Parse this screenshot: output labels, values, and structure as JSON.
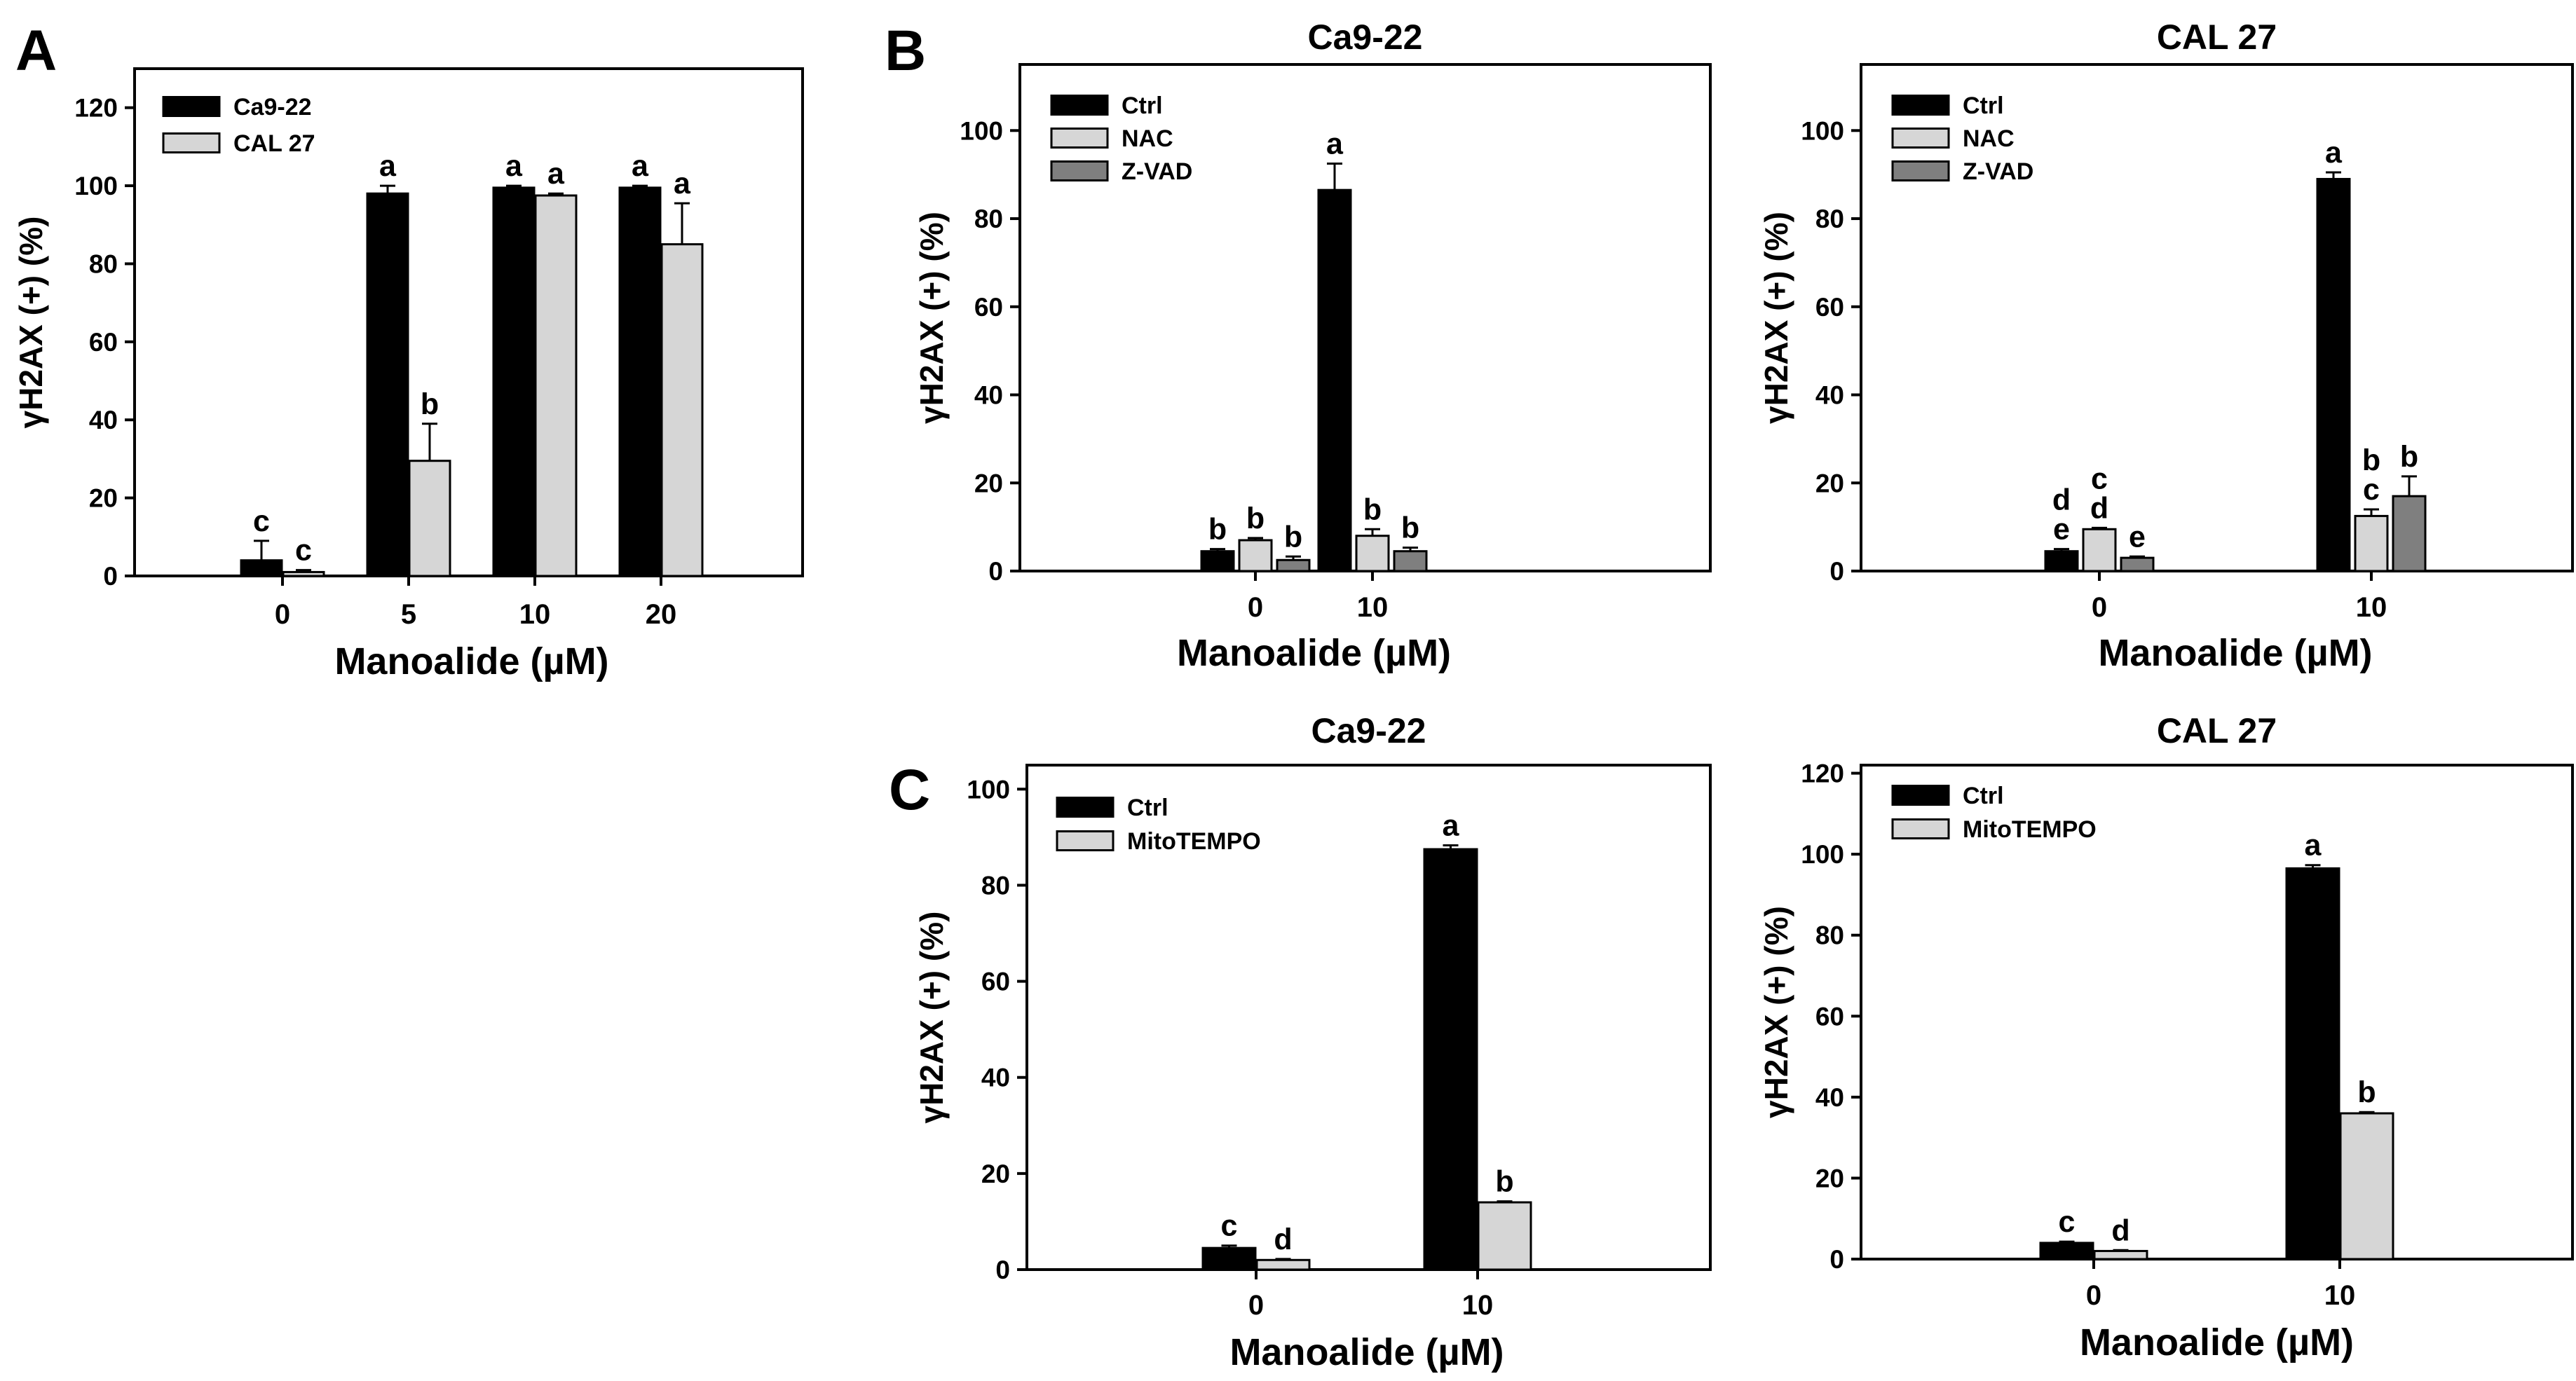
{
  "panel_letters": {
    "a": "A",
    "b": "B",
    "c": "C"
  },
  "colors": {
    "series_1": "#000000",
    "series_2": "#d6d6d6",
    "series_3": "#7f7f7f",
    "axes": "#000000"
  },
  "chart_data": [
    {
      "panel": "A",
      "type": "bar",
      "title": "",
      "xlabel": "Manoalide (µM)",
      "ylabel": "γH2AX (+) (%)",
      "ylim": [
        0,
        130
      ],
      "yticks": [
        0,
        20,
        40,
        60,
        80,
        100,
        120
      ],
      "categories": [
        "0",
        "5",
        "10",
        "20"
      ],
      "legend_position": "top-left",
      "series": [
        {
          "name": "Ca9-22",
          "color": "#000000",
          "values": [
            4,
            98,
            99.5,
            99.5
          ],
          "errors": [
            5,
            2,
            0.5,
            0.5
          ],
          "letters": [
            "c",
            "a",
            "a",
            "a"
          ]
        },
        {
          "name": "CAL 27",
          "color": "#d6d6d6",
          "values": [
            1,
            29.5,
            97.5,
            85
          ],
          "errors": [
            0.5,
            9.5,
            0.5,
            10.5
          ],
          "letters": [
            "c",
            "b",
            "a",
            "a"
          ]
        }
      ]
    },
    {
      "panel": "B",
      "type": "bar",
      "title": "Ca9-22",
      "xlabel": "Manoalide (µM)",
      "ylabel": "γH2AX (+) (%)",
      "ylim": [
        0,
        115
      ],
      "yticks": [
        0,
        20,
        40,
        60,
        80,
        100
      ],
      "categories": [
        "0",
        "10"
      ],
      "legend_position": "top-left",
      "series": [
        {
          "name": "Ctrl",
          "color": "#000000",
          "values": [
            4.5,
            86.5
          ],
          "errors": [
            0.5,
            6
          ],
          "letters": [
            "b",
            "a"
          ]
        },
        {
          "name": "NAC",
          "color": "#d6d6d6",
          "values": [
            7,
            8
          ],
          "errors": [
            0.5,
            1.5
          ],
          "letters": [
            "b",
            "b"
          ]
        },
        {
          "name": "Z-VAD",
          "color": "#7f7f7f",
          "values": [
            2.5,
            4.5
          ],
          "errors": [
            0.8,
            0.8
          ],
          "letters": [
            "b",
            "b"
          ]
        }
      ]
    },
    {
      "panel": "B",
      "type": "bar",
      "title": "CAL 27",
      "xlabel": "Manoalide (µM)",
      "ylabel": "γH2AX (+) (%)",
      "ylim": [
        0,
        115
      ],
      "yticks": [
        0,
        20,
        40,
        60,
        80,
        100
      ],
      "categories": [
        "0",
        "10"
      ],
      "legend_position": "top-left",
      "series": [
        {
          "name": "Ctrl",
          "color": "#000000",
          "values": [
            4.5,
            89
          ],
          "errors": [
            0.5,
            1.5
          ],
          "letters": [
            "d\ne",
            "a"
          ]
        },
        {
          "name": "NAC",
          "color": "#d6d6d6",
          "values": [
            9.5,
            12.5
          ],
          "errors": [
            0.3,
            1.5
          ],
          "letters": [
            "c\nd",
            "b\nc"
          ]
        },
        {
          "name": "Z-VAD",
          "color": "#7f7f7f",
          "values": [
            3,
            17
          ],
          "errors": [
            0.3,
            4.5
          ],
          "letters": [
            "e",
            "b"
          ]
        }
      ]
    },
    {
      "panel": "C",
      "type": "bar",
      "title": "Ca9-22",
      "xlabel": "Manoalide (µM)",
      "ylabel": "γH2AX (+) (%)",
      "ylim": [
        0,
        105
      ],
      "yticks": [
        0,
        20,
        40,
        60,
        80,
        100
      ],
      "categories": [
        "0",
        "10"
      ],
      "legend_position": "top-left",
      "series": [
        {
          "name": "Ctrl",
          "color": "#000000",
          "values": [
            4.5,
            87.5
          ],
          "errors": [
            0.5,
            0.8
          ],
          "letters": [
            "c",
            "a"
          ]
        },
        {
          "name": "MitoTEMPO",
          "color": "#d6d6d6",
          "values": [
            2,
            14
          ],
          "errors": [
            0.2,
            0.2
          ],
          "letters": [
            "d",
            "b"
          ]
        }
      ]
    },
    {
      "panel": "C",
      "type": "bar",
      "title": "CAL 27",
      "xlabel": "Manoalide (µM)",
      "ylabel": "γH2AX (+) (%)",
      "ylim": [
        0,
        122
      ],
      "yticks": [
        0,
        20,
        40,
        60,
        80,
        100,
        120
      ],
      "categories": [
        "0",
        "10"
      ],
      "legend_position": "top-left",
      "series": [
        {
          "name": "Ctrl",
          "color": "#000000",
          "values": [
            4,
            96.5
          ],
          "errors": [
            0.3,
            0.8
          ],
          "letters": [
            "c",
            "a"
          ]
        },
        {
          "name": "MitoTEMPO",
          "color": "#d6d6d6",
          "values": [
            2,
            36
          ],
          "errors": [
            0.2,
            0.3
          ],
          "letters": [
            "d",
            "b"
          ]
        }
      ]
    }
  ]
}
